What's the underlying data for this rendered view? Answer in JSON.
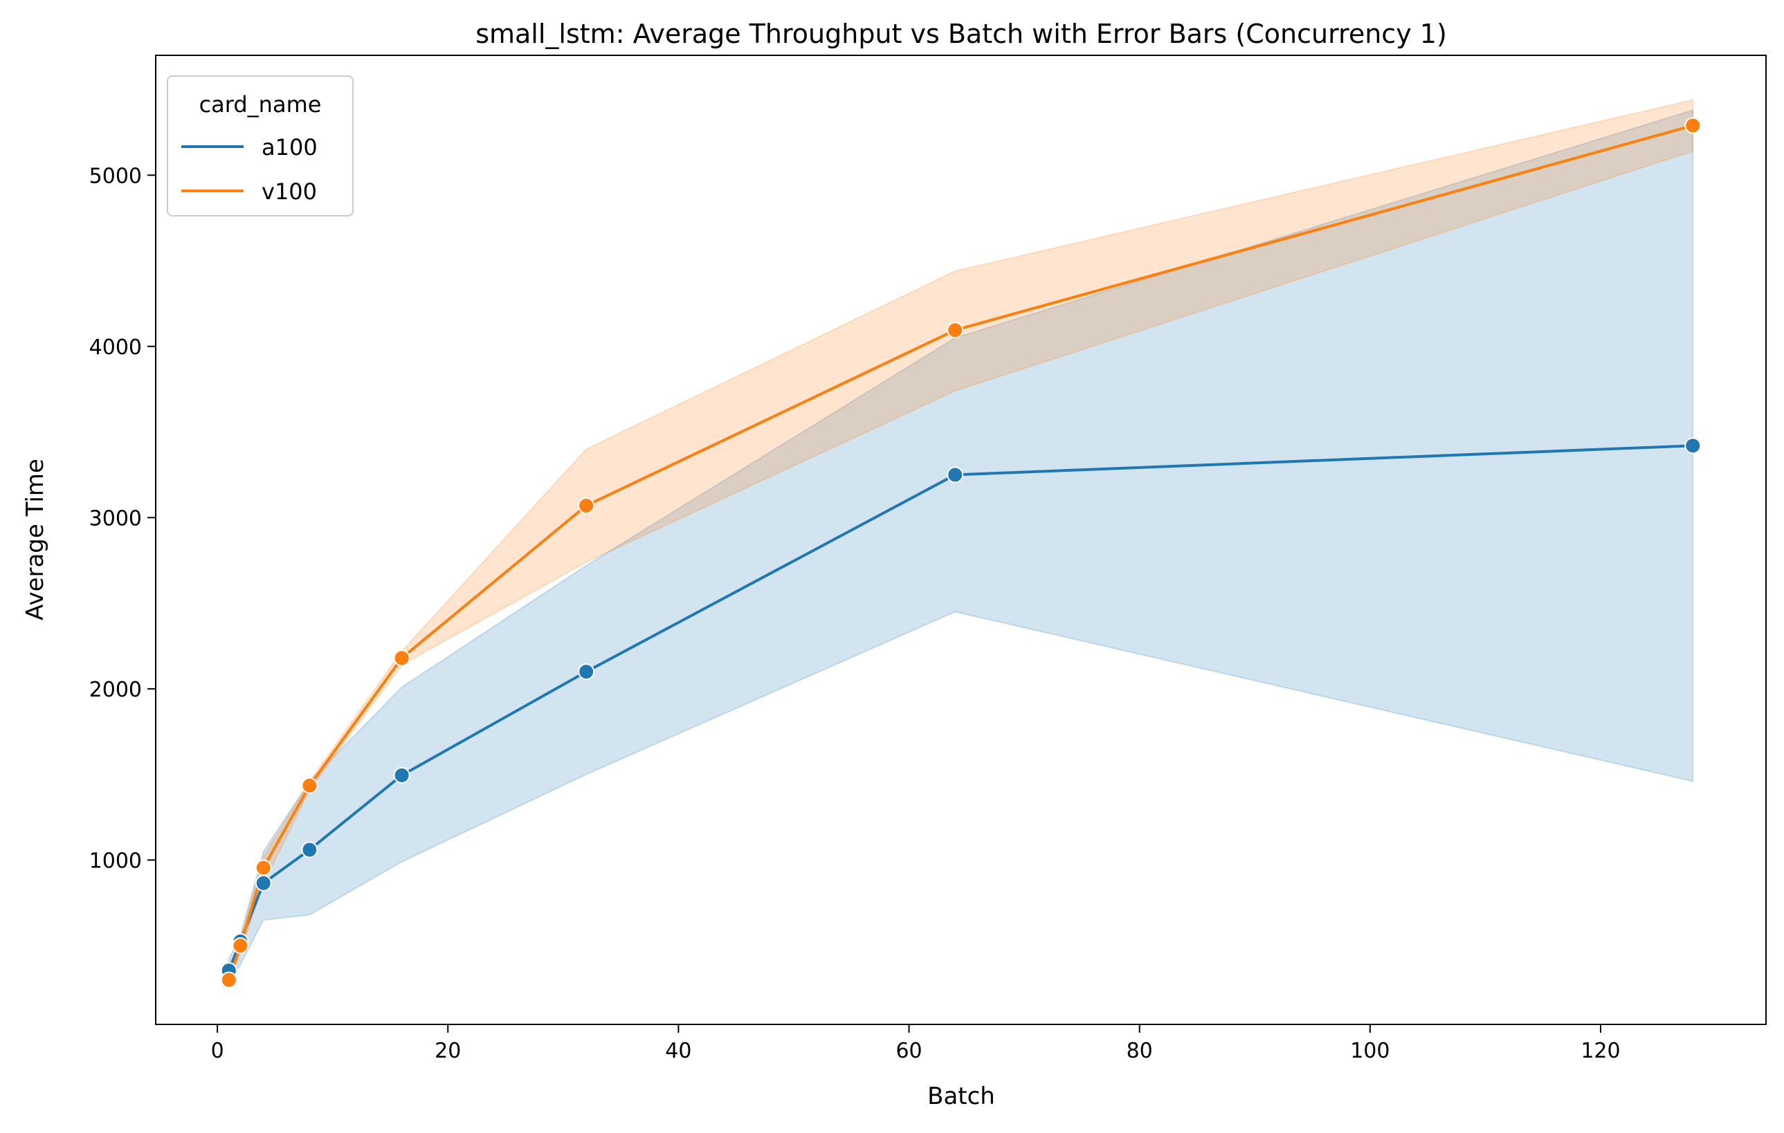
{
  "chart_data": {
    "type": "line",
    "title": "small_lstm: Average Throughput vs Batch with Error Bars (Concurrency 1)",
    "xlabel": "Batch",
    "ylabel": "Average Time",
    "xlim": [
      -5.35,
      134.35
    ],
    "ylim": [
      40,
      5700
    ],
    "x_ticks": [
      0,
      20,
      40,
      60,
      80,
      100,
      120
    ],
    "y_ticks": [
      1000,
      2000,
      3000,
      4000,
      5000
    ],
    "x_tick_labels": [
      "0",
      "20",
      "40",
      "60",
      "80",
      "100",
      "120"
    ],
    "y_tick_labels": [
      "1000",
      "2000",
      "3000",
      "4000",
      "5000"
    ],
    "grid": false,
    "legend": {
      "title": "card_name",
      "position": "upper-left",
      "entries": [
        "a100",
        "v100"
      ]
    },
    "x": [
      1,
      2,
      4,
      8,
      16,
      32,
      64,
      128
    ],
    "series": [
      {
        "name": "a100",
        "color": "#1f77b4",
        "band_color": "#1f77b4",
        "values": [
          355,
          525,
          865,
          1060,
          1495,
          2100,
          3250,
          3420
        ],
        "lower": [
          300,
          390,
          650,
          680,
          990,
          1500,
          2450,
          1460
        ],
        "upper": [
          420,
          560,
          1050,
          1460,
          2010,
          2720,
          4050,
          5380
        ]
      },
      {
        "name": "v100",
        "color": "#ff7f0e",
        "band_color": "#ff7f0e",
        "values": [
          300,
          500,
          955,
          1435,
          2180,
          3070,
          4095,
          5290
        ],
        "lower": [
          280,
          460,
          860,
          1410,
          2140,
          2740,
          3740,
          5140
        ],
        "upper": [
          320,
          540,
          1020,
          1460,
          2220,
          3400,
          4440,
          5440
        ]
      }
    ]
  }
}
